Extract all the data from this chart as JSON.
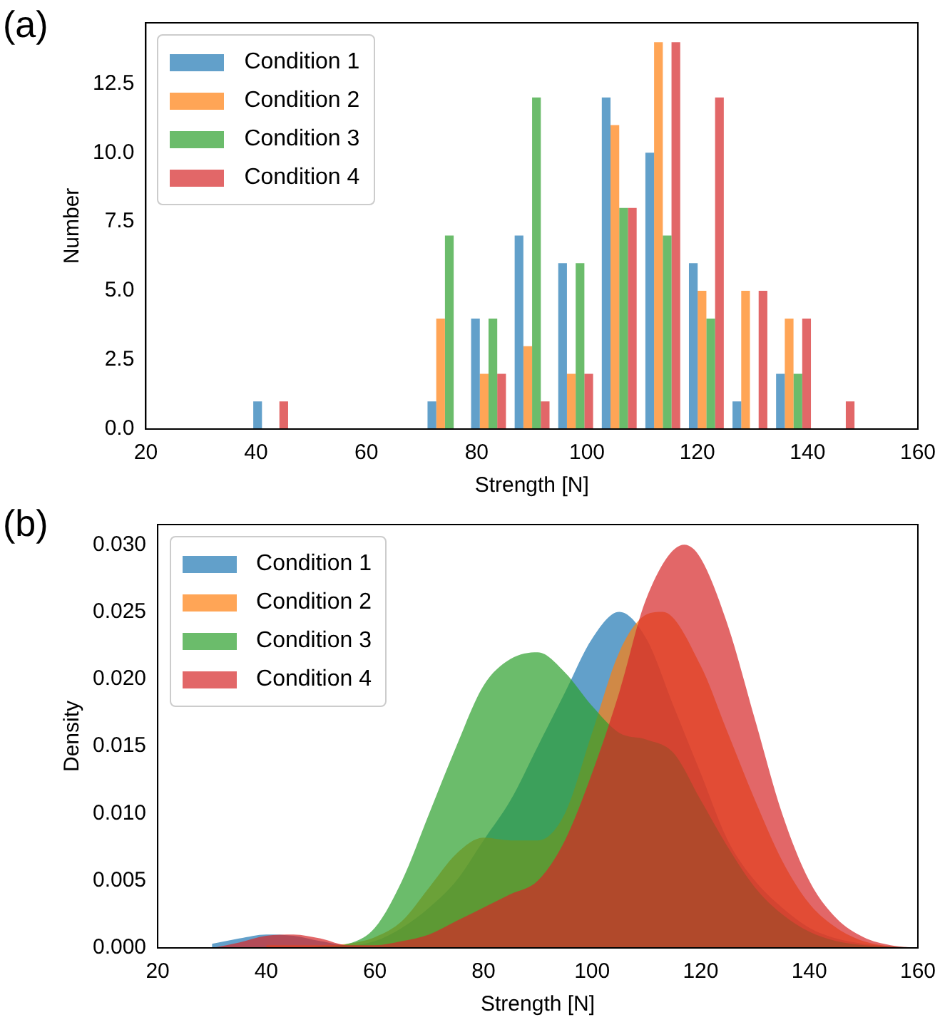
{
  "chart_data": [
    {
      "type": "histogram",
      "title": "(a)",
      "xlabel": "Strength [N]",
      "ylabel": "Number",
      "legend": "top left",
      "grid": false,
      "bins": [
        38.7,
        46.6,
        54.5,
        62.4,
        70.3,
        78.2,
        86.1,
        94.0,
        101.9,
        109.8,
        117.7,
        125.6,
        133.5,
        141.4,
        149.3
      ],
      "series": [
        {
          "name": "Condition 1",
          "color": "#1f77b4",
          "values": [
            1,
            0,
            0,
            0,
            1,
            4,
            7,
            6,
            12,
            10,
            6,
            1,
            2,
            0
          ]
        },
        {
          "name": "Condition 2",
          "color": "#ff7f0e",
          "values": [
            0,
            0,
            0,
            0,
            4,
            2,
            3,
            2,
            11,
            14,
            5,
            5,
            4,
            0
          ]
        },
        {
          "name": "Condition 3",
          "color": "#2ca02c",
          "values": [
            0,
            0,
            0,
            0,
            7,
            4,
            12,
            6,
            8,
            7,
            4,
            0,
            2,
            0
          ]
        },
        {
          "name": "Condition 4",
          "color": "#d62728",
          "values": [
            1,
            0,
            0,
            0,
            0,
            2,
            1,
            2,
            8,
            14,
            12,
            5,
            4,
            1
          ]
        }
      ],
      "xlim": [
        20,
        160
      ],
      "xticks": [
        20,
        40,
        60,
        80,
        100,
        120,
        140,
        160
      ],
      "ylim": [
        0,
        14.7
      ],
      "yticks": [
        {
          "value": 0,
          "label": "0.0"
        },
        {
          "value": 2.5,
          "label": "2.5"
        },
        {
          "value": 5,
          "label": "5.0"
        },
        {
          "value": 7.5,
          "label": "7.5"
        },
        {
          "value": 10,
          "label": "10.0"
        },
        {
          "value": 12.5,
          "label": "12.5"
        }
      ]
    },
    {
      "type": "area",
      "title": "(b)",
      "xlabel": "Strength [N]",
      "ylabel": "Density",
      "legend": "top left",
      "grid": false,
      "series": [
        {
          "name": "Condition 1",
          "color": "#1f77b4",
          "x": [
            30,
            35,
            40,
            45,
            50,
            55,
            60,
            65,
            70,
            75,
            80,
            85,
            90,
            95,
            100,
            105,
            110,
            115,
            120,
            125,
            130,
            135,
            140,
            145,
            150,
            155,
            160
          ],
          "values": [
            0.0003,
            0.0007,
            0.001,
            0.0009,
            0.0005,
            0.0002,
            0.0005,
            0.0015,
            0.003,
            0.005,
            0.008,
            0.011,
            0.015,
            0.019,
            0.023,
            0.025,
            0.023,
            0.018,
            0.013,
            0.008,
            0.005,
            0.003,
            0.0015,
            0.0007,
            0.0003,
            0.0001,
            0
          ]
        },
        {
          "name": "Condition 2",
          "color": "#ff7f0e",
          "x": [
            40,
            45,
            50,
            55,
            60,
            65,
            70,
            75,
            80,
            85,
            90,
            95,
            100,
            105,
            110,
            113,
            120,
            125,
            130,
            135,
            140,
            145,
            150,
            155,
            160
          ],
          "values": [
            0.0002,
            0.0002,
            0.0002,
            0.0003,
            0.0008,
            0.002,
            0.0045,
            0.007,
            0.0082,
            0.008,
            0.008,
            0.01,
            0.016,
            0.022,
            0.0248,
            0.025,
            0.021,
            0.016,
            0.011,
            0.0065,
            0.0033,
            0.0015,
            0.0005,
            0.0001,
            0
          ]
        },
        {
          "name": "Condition 3",
          "color": "#2ca02c",
          "x": [
            40,
            45,
            50,
            55,
            60,
            65,
            70,
            75,
            80,
            85,
            90,
            95,
            100,
            105,
            110,
            115,
            120,
            125,
            130,
            135,
            140,
            145,
            150,
            155,
            160
          ],
          "values": [
            0,
            0,
            0.0001,
            0.0003,
            0.0015,
            0.005,
            0.01,
            0.015,
            0.0195,
            0.0215,
            0.022,
            0.0205,
            0.018,
            0.016,
            0.0155,
            0.0145,
            0.011,
            0.0075,
            0.0045,
            0.0025,
            0.0012,
            0.0005,
            0.0002,
            0.0001,
            0
          ]
        },
        {
          "name": "Condition 4",
          "color": "#d62728",
          "x": [
            30,
            35,
            40,
            45,
            50,
            55,
            60,
            65,
            70,
            75,
            80,
            85,
            90,
            95,
            100,
            105,
            110,
            117,
            120,
            125,
            130,
            135,
            140,
            145,
            150,
            155,
            160
          ],
          "values": [
            0,
            0.0004,
            0.0009,
            0.001,
            0.0007,
            0.0002,
            0.0002,
            0.0005,
            0.001,
            0.002,
            0.003,
            0.004,
            0.005,
            0.008,
            0.013,
            0.019,
            0.026,
            0.03,
            0.029,
            0.024,
            0.017,
            0.01,
            0.005,
            0.0022,
            0.0008,
            0.0002,
            0
          ]
        }
      ],
      "xlim": [
        20,
        160
      ],
      "xticks": [
        20,
        40,
        60,
        80,
        100,
        120,
        140,
        160
      ],
      "ylim": [
        0,
        0.0315
      ],
      "yticks": [
        {
          "value": 0,
          "label": "0.000"
        },
        {
          "value": 0.005,
          "label": "0.005"
        },
        {
          "value": 0.01,
          "label": "0.010"
        },
        {
          "value": 0.015,
          "label": "0.015"
        },
        {
          "value": 0.02,
          "label": "0.020"
        },
        {
          "value": 0.025,
          "label": "0.025"
        },
        {
          "value": 0.03,
          "label": "0.030"
        }
      ]
    }
  ]
}
